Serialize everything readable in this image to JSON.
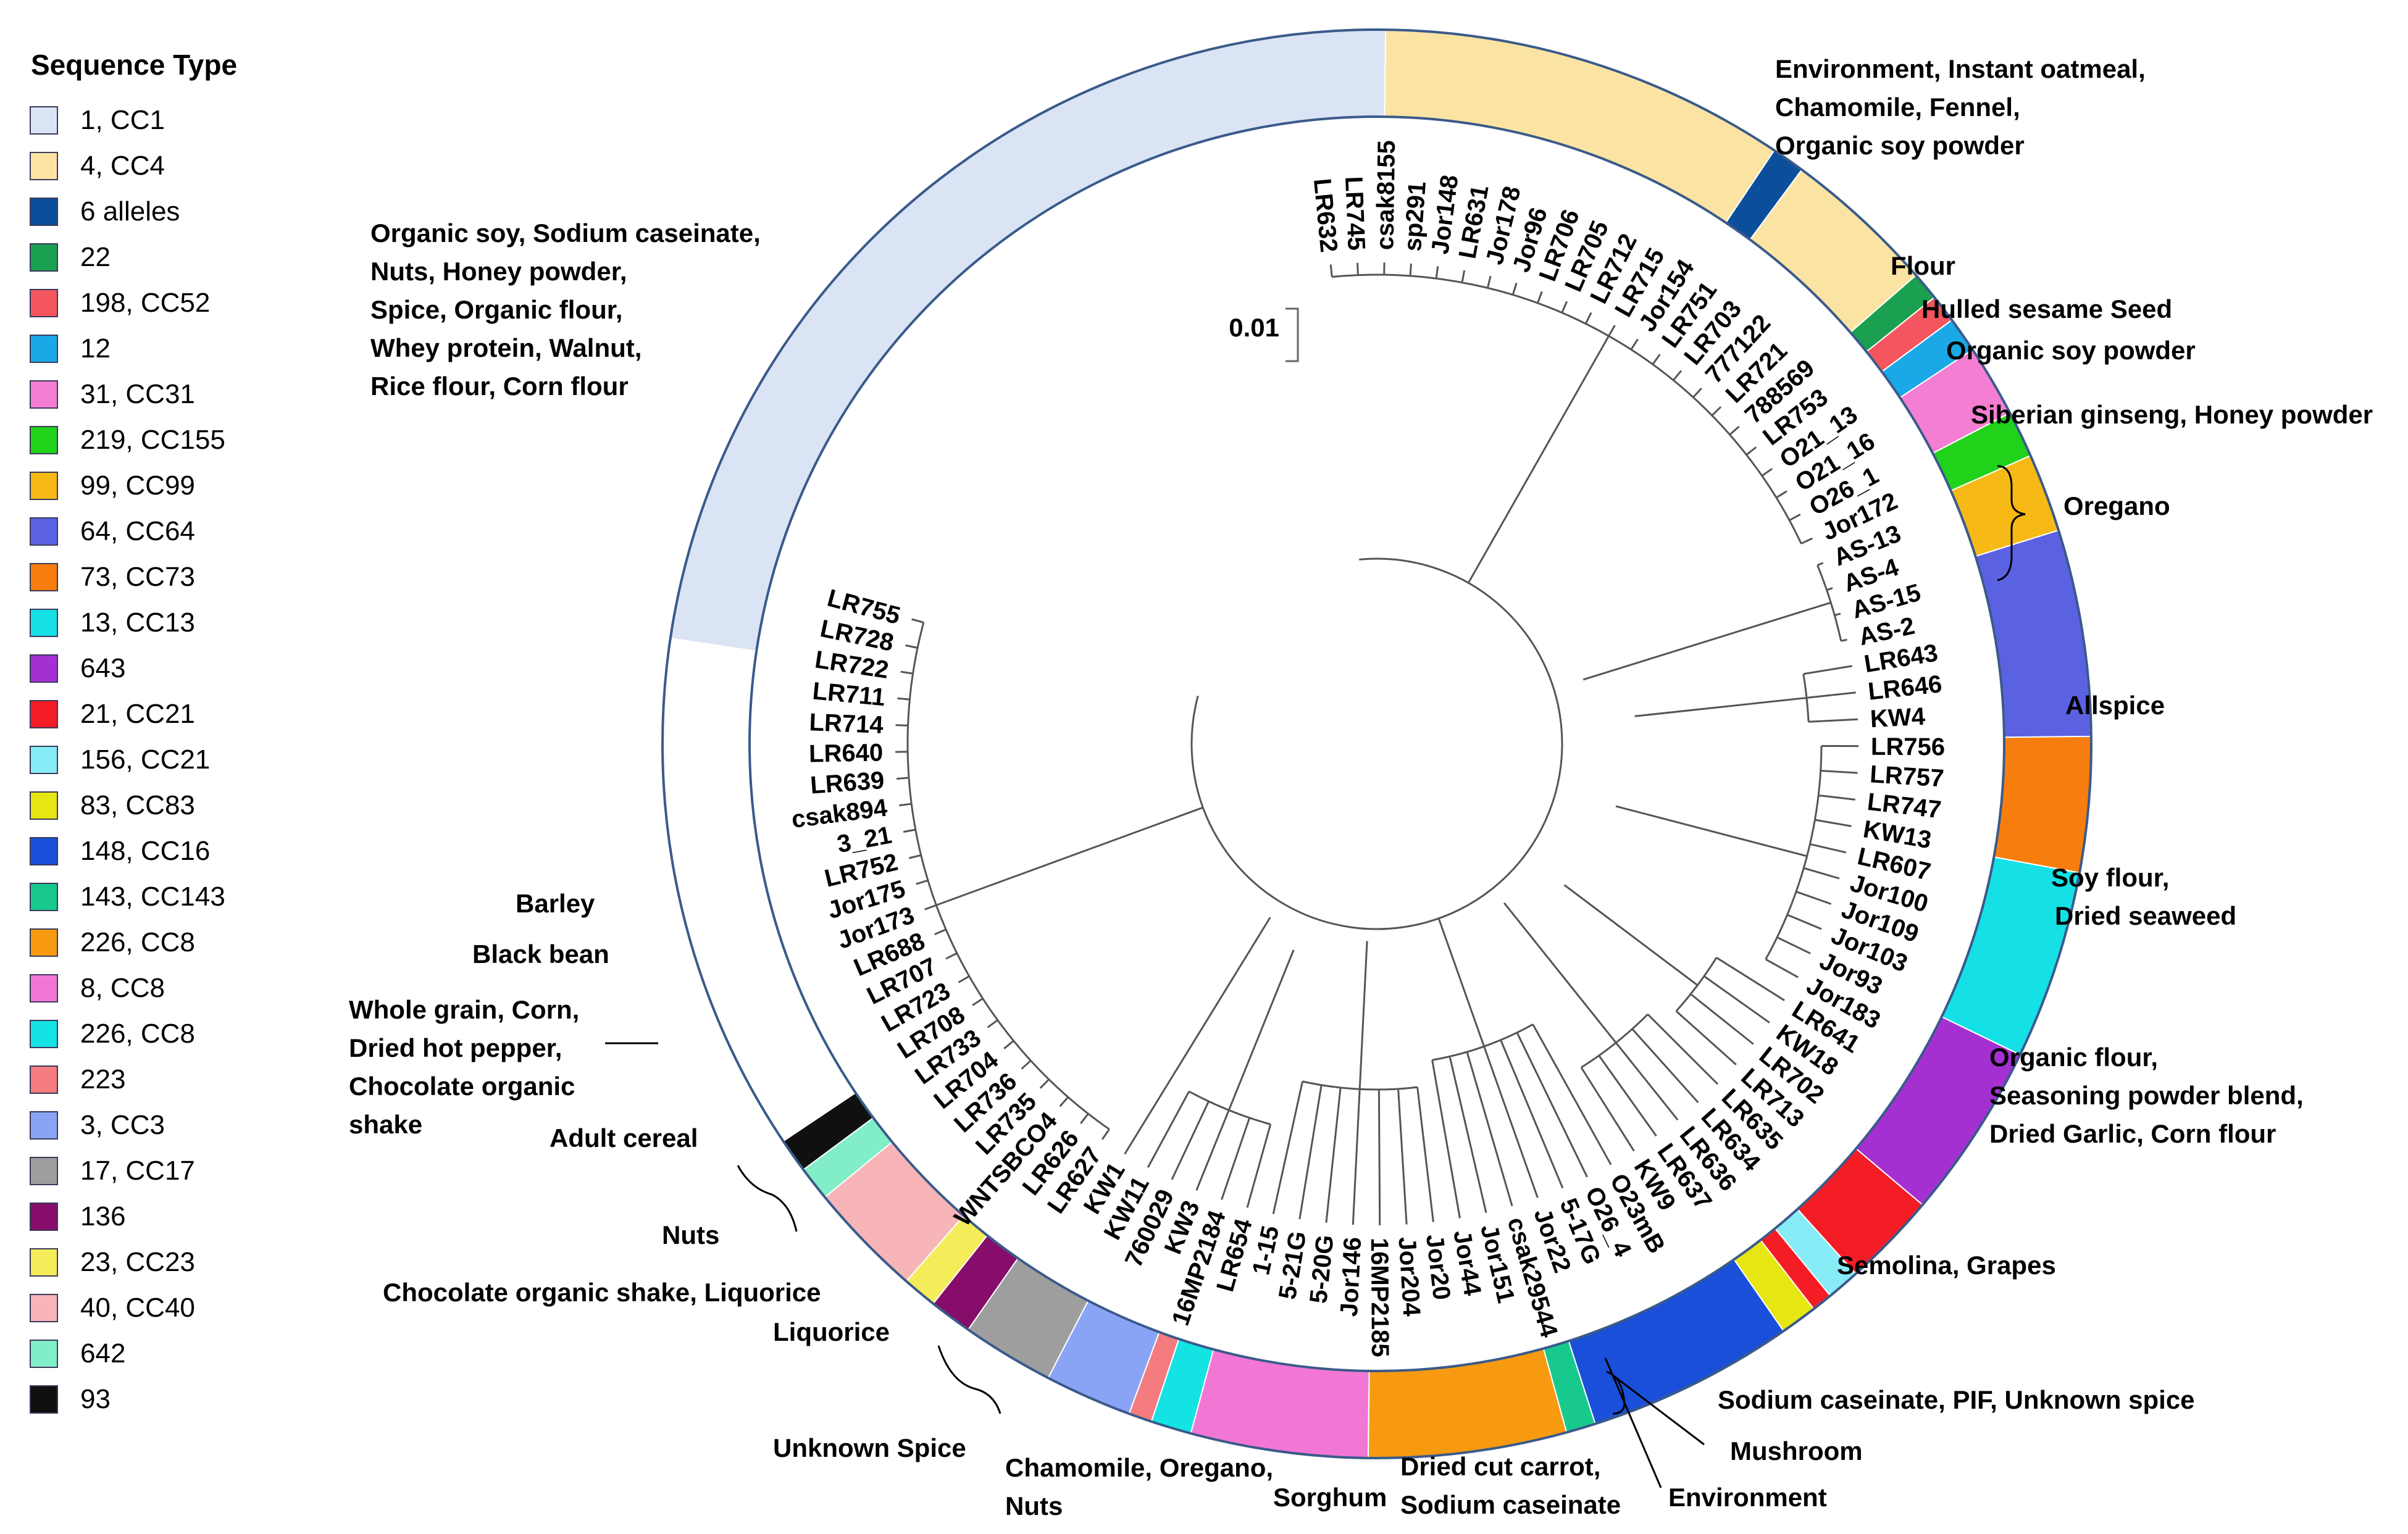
{
  "legend": {
    "title": "Sequence Type",
    "items": [
      {
        "label": "1, CC1",
        "color": "#dae4f4"
      },
      {
        "label": "4, CC4",
        "color": "#fbe4a3"
      },
      {
        "label": "6 alleles",
        "color": "#0b4f9b"
      },
      {
        "label": "22",
        "color": "#1aa050"
      },
      {
        "label": "198, CC52",
        "color": "#f4555f"
      },
      {
        "label": "12",
        "color": "#1aa8e6"
      },
      {
        "label": "31, CC31",
        "color": "#f47ed2"
      },
      {
        "label": "219, CC155",
        "color": "#20d21a"
      },
      {
        "label": "99, CC99",
        "color": "#f7b915"
      },
      {
        "label": "64, CC64",
        "color": "#5b62e2"
      },
      {
        "label": "73, CC73",
        "color": "#f77e0e"
      },
      {
        "label": "13, CC13",
        "color": "#15e0e6"
      },
      {
        "label": "643",
        "color": "#a530d2"
      },
      {
        "label": "21, CC21",
        "color": "#f51d25"
      },
      {
        "label": "156, CC21",
        "color": "#88ecf6"
      },
      {
        "label": "83, CC83",
        "color": "#e6e612"
      },
      {
        "label": "148, CC16",
        "color": "#1a4fd9"
      },
      {
        "label": "143, CC143",
        "color": "#18c98d"
      },
      {
        "label": "226, CC8",
        "color": "#f79a0f"
      },
      {
        "label": "8, CC8",
        "color": "#f277d5"
      },
      {
        "label": "226, CC8",
        "color": "#13e3e3"
      },
      {
        "label": "223",
        "color": "#f47b7e"
      },
      {
        "label": "3, CC3",
        "color": "#8aa4f5"
      },
      {
        "label": "17, CC17",
        "color": "#9e9e9e"
      },
      {
        "label": "136",
        "color": "#860d6a"
      },
      {
        "label": "23, CC23",
        "color": "#f5ec5a"
      },
      {
        "label": "40, CC40",
        "color": "#f7b5b8"
      },
      {
        "label": "642",
        "color": "#82eec8"
      },
      {
        "label": "93",
        "color": "#101010"
      }
    ]
  },
  "ring_segments": [
    {
      "st": "1, CC1",
      "color": "#dae4f4"
    },
    {
      "st": "4, CC4",
      "color": "#fbe4a3"
    },
    {
      "st": "6 alleles",
      "color": "#0b4f9b"
    },
    {
      "st": "4, CC4",
      "color": "#fbe4a3"
    },
    {
      "st": "22",
      "color": "#1aa050"
    },
    {
      "st": "198, CC52",
      "color": "#f4555f"
    },
    {
      "st": "12",
      "color": "#1aa8e6"
    },
    {
      "st": "31, CC31",
      "color": "#f47ed2"
    },
    {
      "st": "219, CC155",
      "color": "#20d21a"
    },
    {
      "st": "99, CC99",
      "color": "#f7b915"
    },
    {
      "st": "64, CC64",
      "color": "#5b62e2"
    },
    {
      "st": "73, CC73",
      "color": "#f77e0e"
    },
    {
      "st": "13, CC13",
      "color": "#15e0e6"
    },
    {
      "st": "643",
      "color": "#a530d2"
    },
    {
      "st": "21, CC21",
      "color": "#f51d25"
    },
    {
      "st": "156, CC21",
      "color": "#88ecf6"
    },
    {
      "st": "21, CC21",
      "color": "#f51d25"
    },
    {
      "st": "83, CC83",
      "color": "#e6e612"
    },
    {
      "st": "148, CC16",
      "color": "#1a4fd9"
    },
    {
      "st": "143, CC143",
      "color": "#18c98d"
    },
    {
      "st": "226, CC8",
      "color": "#f79a0f"
    },
    {
      "st": "8, CC8",
      "color": "#f277d5"
    },
    {
      "st": "226, CC8",
      "color": "#13e3e3"
    },
    {
      "st": "223",
      "color": "#f47b7e"
    },
    {
      "st": "3, CC3",
      "color": "#8aa4f5"
    },
    {
      "st": "17, CC17",
      "color": "#9e9e9e"
    },
    {
      "st": "136",
      "color": "#860d6a"
    },
    {
      "st": "23, CC23",
      "color": "#f5ec5a"
    },
    {
      "st": "40, CC40",
      "color": "#f7b5b8"
    },
    {
      "st": "642",
      "color": "#82eec8"
    },
    {
      "st": "93",
      "color": "#101010"
    }
  ],
  "scale_bar": "0.01",
  "annotations": {
    "a1": [
      "Environment, Instant oatmeal,",
      "Chamomile, Fennel,",
      "Organic soy powder"
    ],
    "a2": [
      "Flour"
    ],
    "a3": [
      "Hulled sesame Seed"
    ],
    "a4": [
      "Organic soy powder"
    ],
    "a5": [
      "Siberian ginseng, Honey powder"
    ],
    "a6": [
      "Oregano"
    ],
    "a7": [
      "Allspice"
    ],
    "a8": [
      "Soy flour,",
      "Dried seaweed"
    ],
    "a9": [
      "Organic flour,",
      "Seasoning powder blend,",
      "Dried Garlic, Corn flour"
    ],
    "a10": [
      "Semolina, Grapes"
    ],
    "a11": [
      "Sodium caseinate, PIF, Unknown spice"
    ],
    "a12": [
      "Mushroom"
    ],
    "a13": [
      "Environment"
    ],
    "a14": [
      "Dried cut carrot,",
      "Sodium caseinate"
    ],
    "a15": [
      "Sorghum"
    ],
    "a16": [
      "Chamomile, Oregano,",
      "Nuts"
    ],
    "a17": [
      "Unknown Spice"
    ],
    "a18": [
      "Liquorice"
    ],
    "a19": [
      "Chocolate organic shake, Liquorice"
    ],
    "a20": [
      "Nuts"
    ],
    "a21": [
      "Adult cereal"
    ],
    "a22": [
      "Whole grain, Corn,",
      "Dried hot pepper,",
      "Chocolate organic",
      "shake"
    ],
    "a23": [
      "Black bean"
    ],
    "a24": [
      "Barley"
    ],
    "a25": [
      "Organic soy, Sodium caseinate,",
      "Nuts, Honey powder,",
      "Spice, Organic flour,",
      "Whey protein, Walnut,",
      "Rice flour, Corn flour"
    ]
  },
  "leaves": [
    "LR632",
    "LR745",
    "csak8155",
    "sp291",
    "Jor148",
    "LR631",
    "Jor178",
    "Jor96",
    "LR706",
    "LR705",
    "LR712",
    "LR715",
    "Jor154",
    "LR751",
    "LR703",
    "777122",
    "LR721",
    "788569",
    "LR753",
    "O21_13",
    "O21_16",
    "O26_1",
    "Jor172",
    "AS-13",
    "AS-4",
    "AS-15",
    "AS-2",
    "LR643",
    "LR646",
    "KW4",
    "LR756",
    "LR757",
    "LR747",
    "KW13",
    "LR607",
    "Jor100",
    "Jor109",
    "Jor103",
    "Jor93",
    "Jor183",
    "LR641",
    "KW18",
    "LR702",
    "LR713",
    "LR635",
    "LR634",
    "LR636",
    "LR637",
    "KW9",
    "O23mB",
    "O26_4",
    "5-17G",
    "Jor22",
    "csak29544",
    "Jor151",
    "Jor44",
    "Jor20",
    "Jor204",
    "16MP2185",
    "Jor146",
    "5-20G",
    "5-21G",
    "1-15",
    "LR654",
    "16MP2184",
    "KW3",
    "760029",
    "KW11",
    "KW1",
    "LR627",
    "LR626",
    "WNTSBCO4",
    "LR735",
    "LR736",
    "LR704",
    "LR733",
    "LR708",
    "LR723",
    "LR707",
    "LR688",
    "Jor173",
    "Jor175",
    "LR752",
    "3_21",
    "csak894",
    "LR639",
    "LR640",
    "LR714",
    "LR711",
    "LR722",
    "LR728",
    "LR755"
  ]
}
